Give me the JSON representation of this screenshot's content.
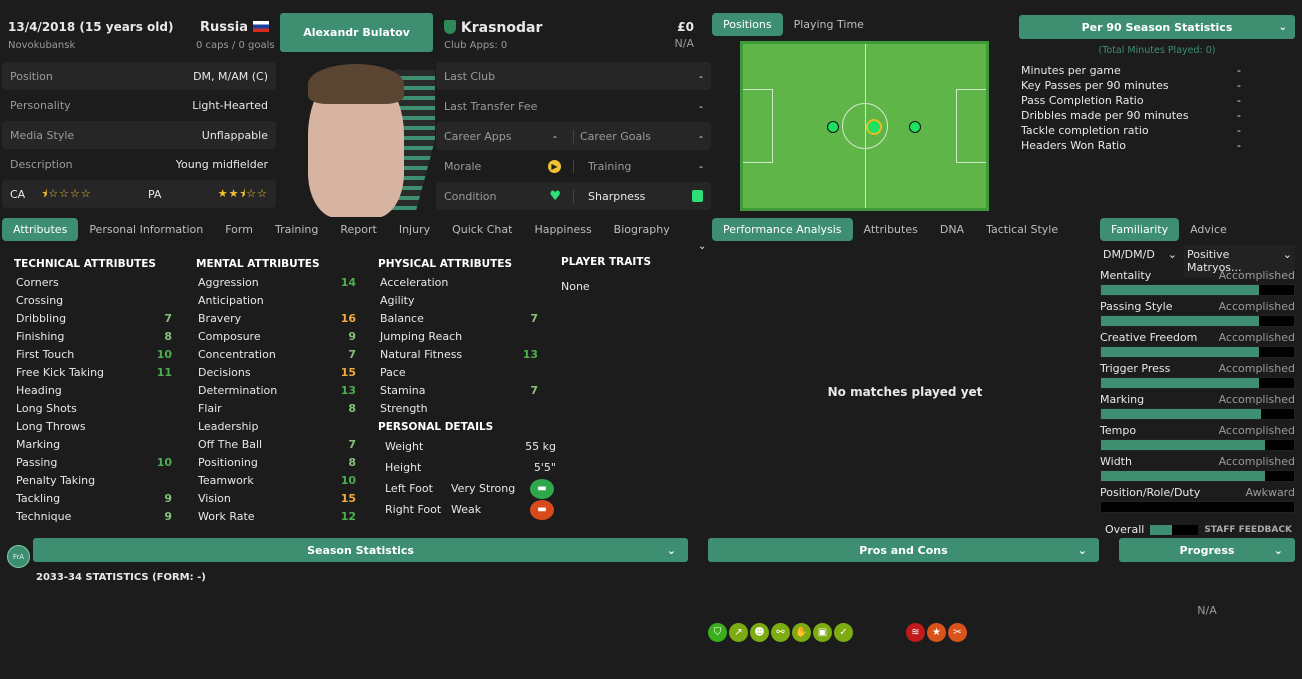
{
  "player": {
    "dob": "13/4/2018 (15 years old)",
    "birthplace": "Novokubansk",
    "nation": "Russia",
    "caps": "0 caps / 0 goals",
    "name": "Alexandr Bulatov"
  },
  "bio_rows": [
    {
      "label": "Position",
      "value": "DM, M/AM (C)"
    },
    {
      "label": "Personality",
      "value": "Light-Hearted"
    },
    {
      "label": "Media Style",
      "value": "Unflappable"
    },
    {
      "label": "Description",
      "value": "Young midfielder"
    }
  ],
  "ability": {
    "ca_label": "CA",
    "pa_label": "PA",
    "ca_stars": 0.5,
    "pa_stars": 2.5,
    "max_stars": 5
  },
  "club": {
    "name": "Krasnodar",
    "apps": "Club Apps: 0",
    "value": "£0",
    "wage": "N/A"
  },
  "club_rows": {
    "last_club": {
      "label": "Last Club",
      "value": "-"
    },
    "last_fee": {
      "label": "Last Transfer Fee",
      "value": "-"
    },
    "career_apps": {
      "label": "Career Apps",
      "value": "-"
    },
    "career_goals": {
      "label": "Career Goals",
      "value": "-"
    },
    "morale": {
      "label": "Morale",
      "icon": "morale-okay-icon"
    },
    "training": {
      "label": "Training",
      "value": "-"
    },
    "condition": {
      "label": "Condition",
      "icon": "heart-icon"
    },
    "sharpness": {
      "label": "Sharpness",
      "icon": "thumbs-up-icon"
    }
  },
  "tabs": [
    "Attributes",
    "Personal Information",
    "Form",
    "Training",
    "Report",
    "Injury",
    "Quick Chat",
    "Happiness",
    "Biography"
  ],
  "pos_tabs": [
    "Positions",
    "Playing Time"
  ],
  "stats": {
    "title": "Per 90 Season Statistics",
    "sub": "(Total Minutes Played: 0)",
    "rows": [
      {
        "label": "Minutes per game",
        "value": "-"
      },
      {
        "label": "Key Passes per 90 minutes",
        "value": "-"
      },
      {
        "label": "Pass Completion Ratio",
        "value": "-"
      },
      {
        "label": "Dribbles made per 90 minutes",
        "value": "-"
      },
      {
        "label": "Tackle completion ratio",
        "value": "-"
      },
      {
        "label": "Headers Won Ratio",
        "value": "-"
      }
    ]
  },
  "attributes": {
    "technical": {
      "title": "TECHNICAL ATTRIBUTES",
      "items": [
        [
          "Corners",
          ""
        ],
        [
          "Crossing",
          ""
        ],
        [
          "Dribbling",
          "7"
        ],
        [
          "Finishing",
          "8"
        ],
        [
          "First Touch",
          "10"
        ],
        [
          "Free Kick Taking",
          "11"
        ],
        [
          "Heading",
          ""
        ],
        [
          "Long Shots",
          ""
        ],
        [
          "Long Throws",
          ""
        ],
        [
          "Marking",
          ""
        ],
        [
          "Passing",
          "10"
        ],
        [
          "Penalty Taking",
          ""
        ],
        [
          "Tackling",
          "9"
        ],
        [
          "Technique",
          "9"
        ]
      ]
    },
    "mental": {
      "title": "MENTAL ATTRIBUTES",
      "items": [
        [
          "Aggression",
          "14"
        ],
        [
          "Anticipation",
          ""
        ],
        [
          "Bravery",
          "16"
        ],
        [
          "Composure",
          "9"
        ],
        [
          "Concentration",
          "7"
        ],
        [
          "Decisions",
          "15"
        ],
        [
          "Determination",
          "13"
        ],
        [
          "Flair",
          "8"
        ],
        [
          "Leadership",
          ""
        ],
        [
          "Off The Ball",
          "7"
        ],
        [
          "Positioning",
          "8"
        ],
        [
          "Teamwork",
          "10"
        ],
        [
          "Vision",
          "15"
        ],
        [
          "Work Rate",
          "12"
        ]
      ]
    },
    "physical": {
      "title": "PHYSICAL ATTRIBUTES",
      "items": [
        [
          "Acceleration",
          ""
        ],
        [
          "Agility",
          ""
        ],
        [
          "Balance",
          "7"
        ],
        [
          "Jumping Reach",
          ""
        ],
        [
          "Natural Fitness",
          "13"
        ],
        [
          "Pace",
          ""
        ],
        [
          "Stamina",
          "7"
        ],
        [
          "Strength",
          ""
        ]
      ]
    },
    "personal": {
      "title": "PERSONAL DETAILS",
      "weight_label": "Weight",
      "weight": "55 kg",
      "height_label": "Height",
      "height": "5'5\"",
      "left_label": "Left Foot",
      "left": "Very Strong",
      "right_label": "Right Foot",
      "right": "Weak"
    },
    "traits": {
      "title": "PLAYER TRAITS",
      "value": "None"
    }
  },
  "perf_tabs": [
    "Performance Analysis",
    "Attributes",
    "DNA",
    "Tactical Style"
  ],
  "no_matches": "No matches played yet",
  "fam_tabs": [
    "Familiarity",
    "Advice"
  ],
  "fam_selects": [
    "DM/DM/D",
    "Positive Matryos..."
  ],
  "familiarity": [
    {
      "label": "Mentality",
      "level": "Accomplished",
      "pct": 82
    },
    {
      "label": "Passing Style",
      "level": "Accomplished",
      "pct": 82
    },
    {
      "label": "Creative Freedom",
      "level": "Accomplished",
      "pct": 82
    },
    {
      "label": "Trigger Press",
      "level": "Accomplished",
      "pct": 82
    },
    {
      "label": "Marking",
      "level": "Accomplished",
      "pct": 83
    },
    {
      "label": "Tempo",
      "level": "Accomplished",
      "pct": 85
    },
    {
      "label": "Width",
      "level": "Accomplished",
      "pct": 85
    },
    {
      "label": "Position/Role/Duty",
      "level": "Awkward",
      "pct": 0
    }
  ],
  "overall": {
    "label": "Overall",
    "pct": 45,
    "feedback": "STAFF FEEDBACK"
  },
  "bottom": {
    "badge": "FrA",
    "season": "Season Statistics",
    "season_sub": "2033-34 STATISTICS (FORM: -)",
    "pros": "Pros and Cons",
    "progress": "Progress",
    "progress_value": "N/A"
  },
  "pros_icons": [
    "shield-icon",
    "trend-up-icon",
    "head-icon",
    "link-icon",
    "handshake-icon",
    "pitch-icon",
    "tick-clipboard-icon"
  ],
  "cons_icons": [
    "spring-icon",
    "star-icon",
    "broken-icon"
  ],
  "colors": {
    "accent": "#3e8e72",
    "pitch": "#5fb548",
    "strong": "#4caf50",
    "weak": "#d84a1b"
  }
}
